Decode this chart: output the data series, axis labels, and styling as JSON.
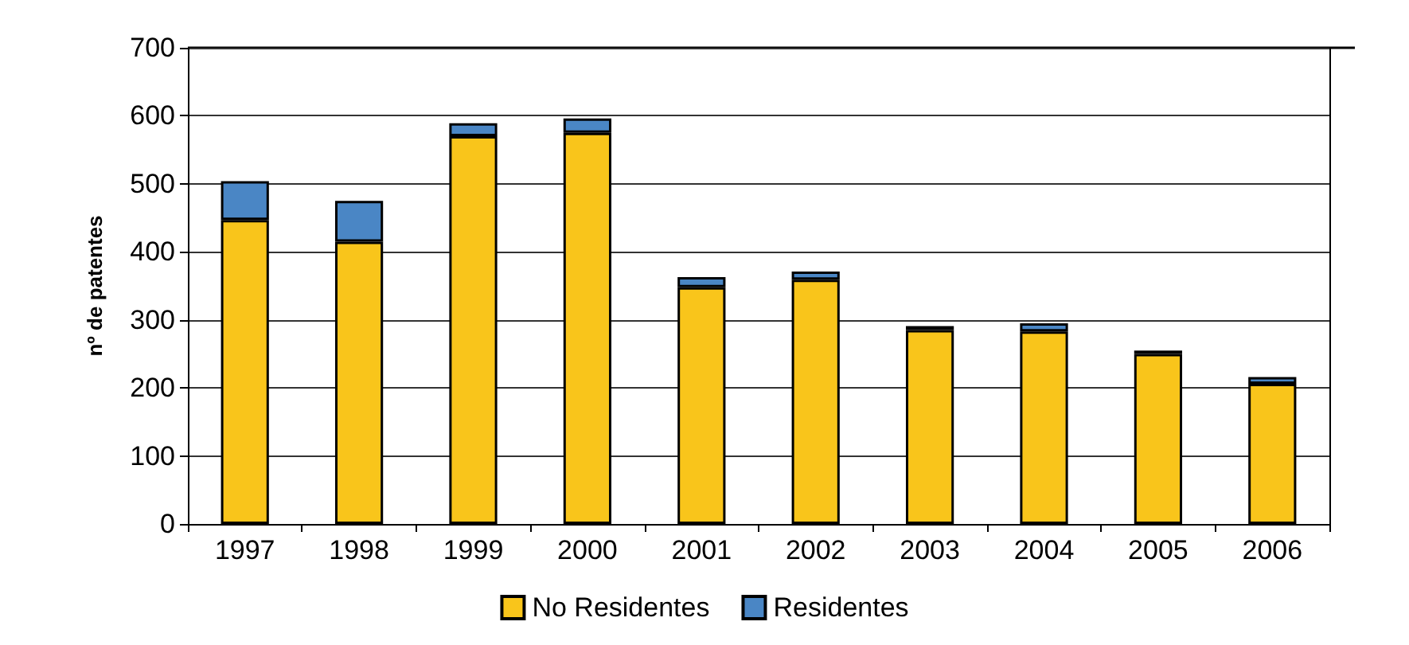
{
  "chart_data": {
    "type": "bar",
    "stacked": true,
    "ylabel": "nº de patentes",
    "categories": [
      "1997",
      "1998",
      "1999",
      "2000",
      "2001",
      "2002",
      "2003",
      "2004",
      "2005",
      "2006"
    ],
    "series": [
      {
        "name": "No Residentes",
        "color": "#f9c51b",
        "values": [
          447,
          415,
          570,
          575,
          348,
          359,
          285,
          283,
          250,
          206
        ]
      },
      {
        "name": "Residentes",
        "color": "#4a86c5",
        "values": [
          57,
          60,
          19,
          21,
          15,
          12,
          6,
          12,
          5,
          10
        ]
      }
    ],
    "ylim": [
      0,
      700
    ],
    "yticks": [
      0,
      100,
      200,
      300,
      400,
      500,
      600,
      700
    ],
    "grid": "y",
    "legend": "bottom"
  }
}
